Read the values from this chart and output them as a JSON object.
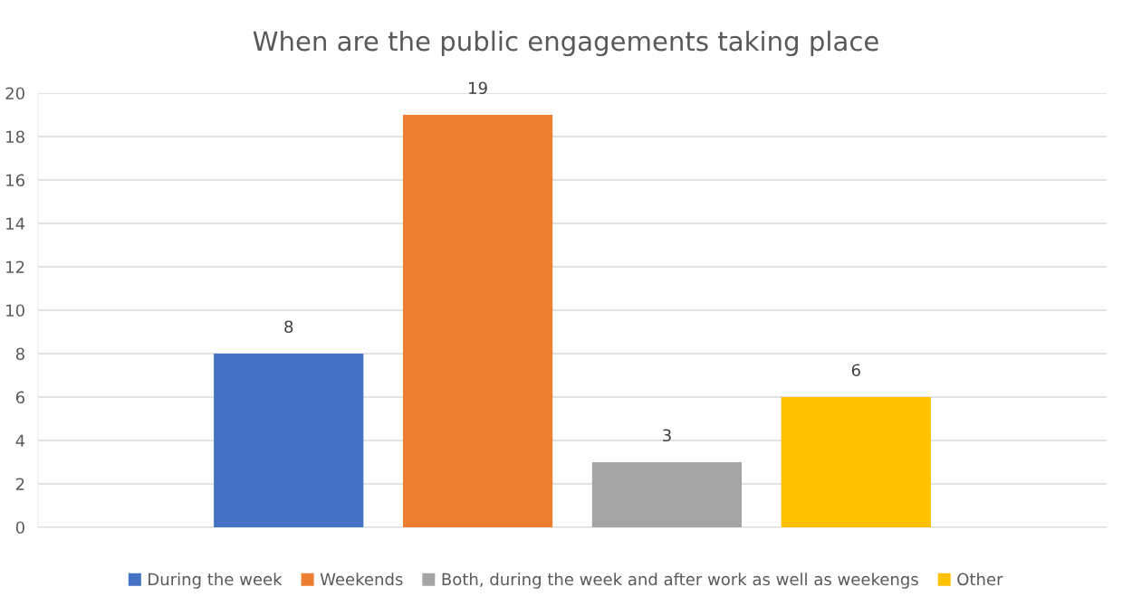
{
  "chart_data": {
    "type": "bar",
    "title": "When are the public engagements taking place",
    "categories": [
      null
    ],
    "series": [
      {
        "name": "During the week",
        "color": "#4472c4",
        "values": [
          8
        ]
      },
      {
        "name": "Weekends",
        "color": "#ed7d31",
        "values": [
          19
        ]
      },
      {
        "name": "Both, during the week and after work as well as weekengs",
        "color": "#a5a5a5",
        "values": [
          3
        ]
      },
      {
        "name": "Other",
        "color": "#ffc000",
        "values": [
          6
        ]
      }
    ],
    "ylim": [
      0,
      20
    ],
    "yticks": [
      0,
      2,
      4,
      6,
      8,
      10,
      12,
      14,
      16,
      18,
      20
    ],
    "grid": "y",
    "legend": "bottom",
    "data_labels": true
  }
}
